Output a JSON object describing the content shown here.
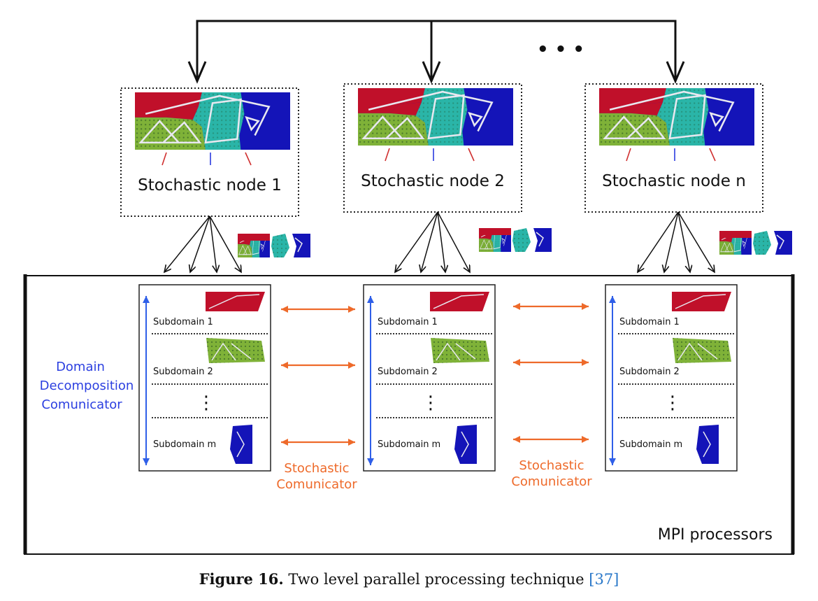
{
  "diagram": {
    "ellipsis": "• • •",
    "nodes": [
      {
        "label": "Stochastic node 1"
      },
      {
        "label": "Stochastic node 2"
      },
      {
        "label": "Stochastic node n"
      }
    ],
    "subdomains": {
      "first": "Subdomain 1",
      "second": "Subdomain 2",
      "last": "Subdomain m",
      "vertical_ellipsis": "⋮"
    },
    "domain_comm": {
      "line1": "Domain",
      "line2": "Decomposition",
      "line3": "Comunicator"
    },
    "stochastic_comm": {
      "line1": "Stochastic",
      "line2": "Comunicator"
    },
    "mpi_label": "MPI processors",
    "colors": {
      "red": "#c0102a",
      "blue": "#1414b8",
      "teal": "#2ab5a8",
      "green": "#7fb238",
      "orange": "#ee6a2a",
      "comm_blue": "#2b3fe0",
      "arrow_blue": "#2f5fe8"
    }
  },
  "caption": {
    "figure": "Figure 16.",
    "text": "Two level parallel processing technique",
    "ref": "[37]"
  }
}
